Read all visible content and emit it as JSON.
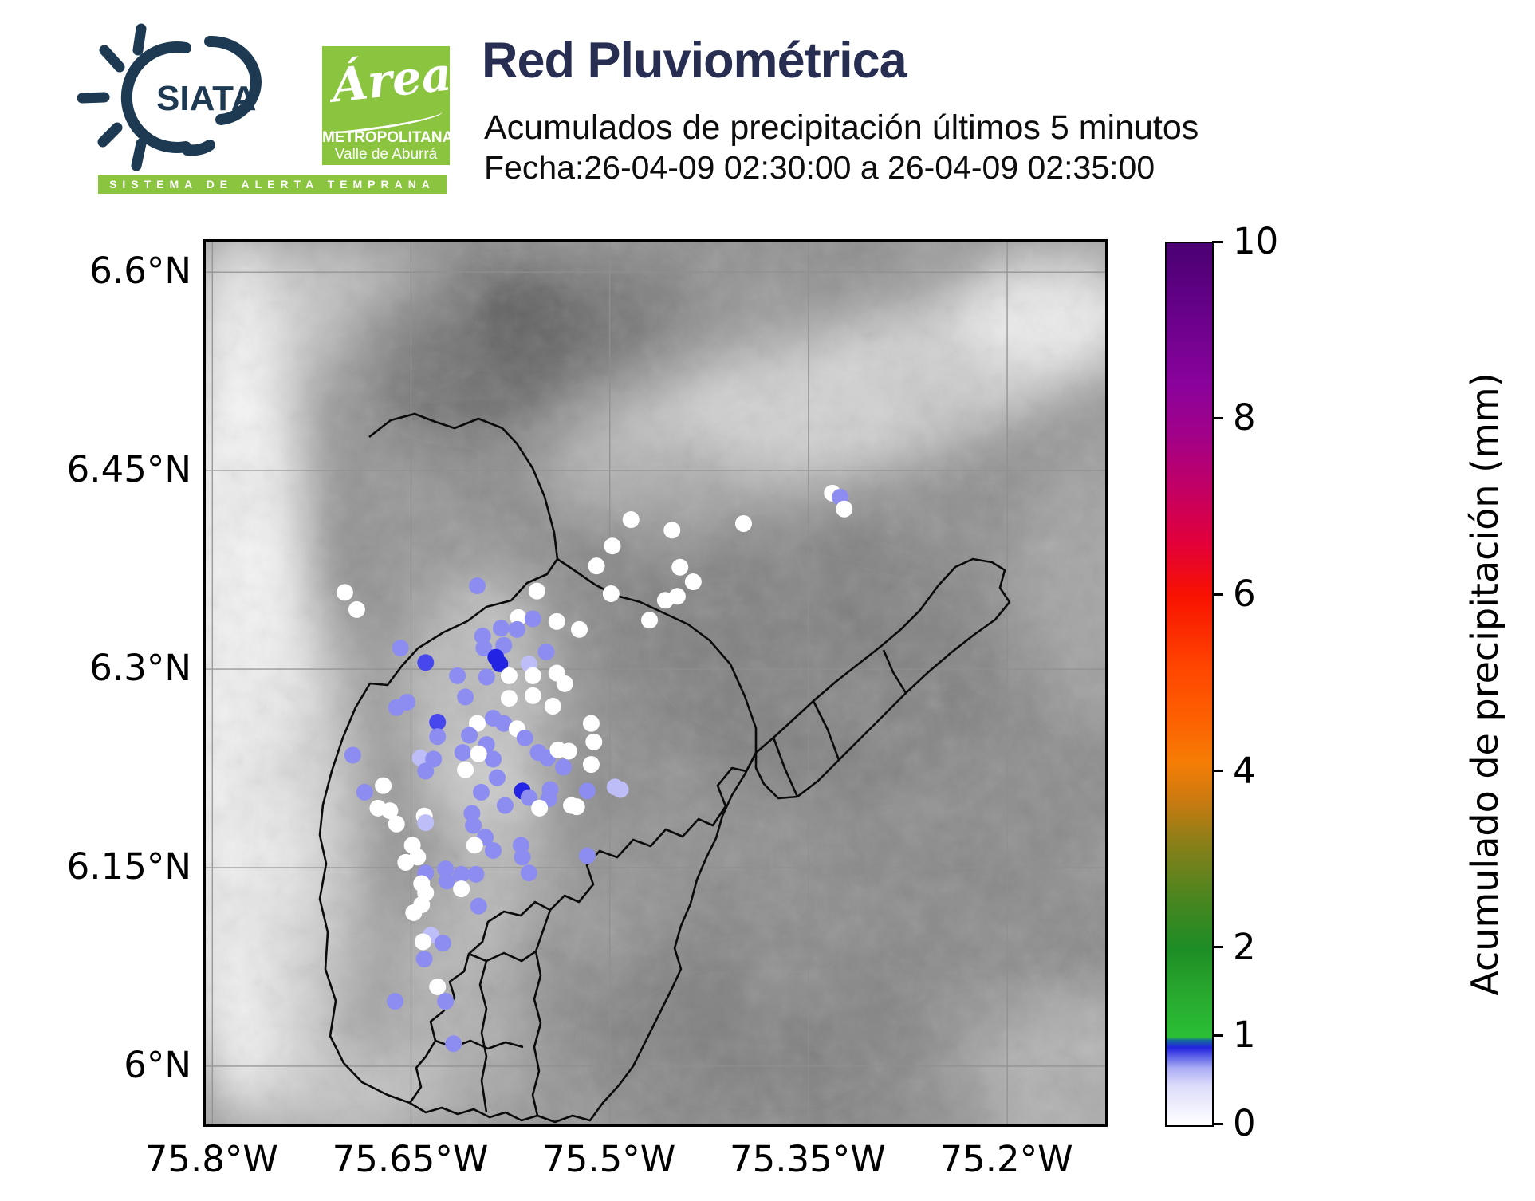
{
  "header": {
    "title": "Red Pluviométrica",
    "subtitle": "Acumulados de precipitación últimos 5 minutos",
    "date_line": "Fecha:26-04-09 02:30:00 a 26-04-09 02:35:00",
    "siata_label": "SIATA",
    "banner_text": "SISTEMA DE ALERTA TEMPRANA",
    "area_logo": {
      "script": "Área",
      "line1": "METROPOLITANA",
      "line2": "Valle de Aburrá"
    },
    "colors": {
      "brand_navy": "#1d3a52",
      "title_navy": "#272e52",
      "brand_green": "#8bc540"
    }
  },
  "chart_data": {
    "type": "scatter",
    "title": "Red Pluviométrica",
    "subtitle": "Acumulados de precipitación últimos 5 minutos",
    "time_range": "26-04-09 02:30:00 a 26-04-09 02:35:00",
    "grid": true,
    "map_extent": {
      "lon_west": 75.805,
      "lon_east": 75.126,
      "lat_south": 5.956,
      "lat_north": 6.623
    },
    "x_ticks": [
      {
        "label": "75.8°W",
        "lon": 75.8
      },
      {
        "label": "75.65°W",
        "lon": 75.65
      },
      {
        "label": "75.5°W",
        "lon": 75.5
      },
      {
        "label": "75.35°W",
        "lon": 75.35
      },
      {
        "label": "75.2°W",
        "lon": 75.2
      }
    ],
    "y_ticks": [
      {
        "label": "6.6°N",
        "lat": 6.6
      },
      {
        "label": "6.45°N",
        "lat": 6.45
      },
      {
        "label": "6.3°N",
        "lat": 6.3
      },
      {
        "label": "6.15°N",
        "lat": 6.15
      },
      {
        "label": "6°N",
        "lat": 6.0
      }
    ],
    "colorbar": {
      "label": "Acumulado de precipitación (mm)",
      "min": 0,
      "max": 10,
      "ticks": [
        0,
        1,
        2,
        4,
        6,
        8,
        10
      ],
      "stops": [
        [
          0.0,
          "#ffffff"
        ],
        [
          0.45,
          "#dcdcfa"
        ],
        [
          0.65,
          "#a9abf4"
        ],
        [
          0.78,
          "#5a5fe8"
        ],
        [
          0.88,
          "#2222e0"
        ],
        [
          0.96,
          "#1565a0"
        ],
        [
          1.0,
          "#2abf35"
        ],
        [
          1.5,
          "#28a82e"
        ],
        [
          2.0,
          "#1d8d26"
        ],
        [
          2.6,
          "#4d851f"
        ],
        [
          3.2,
          "#8a7f18"
        ],
        [
          3.7,
          "#cc7a10"
        ],
        [
          4.1,
          "#f57d05"
        ],
        [
          4.6,
          "#fd6101"
        ],
        [
          5.2,
          "#ff4500"
        ],
        [
          6.0,
          "#f81200"
        ],
        [
          6.6,
          "#e2003a"
        ],
        [
          7.2,
          "#c30063"
        ],
        [
          7.8,
          "#a30188"
        ],
        [
          8.4,
          "#8a029c"
        ],
        [
          9.2,
          "#68018a"
        ],
        [
          10.0,
          "#4a0173"
        ]
      ]
    },
    "value_color_scale": [
      [
        0.15,
        "#ffffff"
      ],
      [
        0.4,
        "#bdbdf7"
      ],
      [
        0.65,
        "#8c8cf1"
      ],
      [
        0.8,
        "#4747ee"
      ],
      [
        99,
        "#2323e4"
      ]
    ],
    "point_format": [
      "lon_W",
      "lat_N",
      "mm_5min"
    ],
    "points": [
      [
        75.51,
        6.378,
        0.05
      ],
      [
        75.498,
        6.393,
        0.05
      ],
      [
        75.555,
        6.359,
        0.05
      ],
      [
        75.6,
        6.363,
        0.5
      ],
      [
        75.7,
        6.358,
        0.05
      ],
      [
        75.691,
        6.345,
        0.05
      ],
      [
        75.447,
        6.377,
        0.05
      ],
      [
        75.437,
        6.366,
        0.05
      ],
      [
        75.458,
        6.352,
        0.05
      ],
      [
        75.449,
        6.355,
        0.05
      ],
      [
        75.47,
        6.337,
        0.05
      ],
      [
        75.499,
        6.357,
        0.05
      ],
      [
        75.569,
        6.339,
        0.05
      ],
      [
        75.558,
        6.338,
        0.5
      ],
      [
        75.54,
        6.336,
        0.05
      ],
      [
        75.523,
        6.33,
        0.05
      ],
      [
        75.582,
        6.331,
        0.5
      ],
      [
        75.57,
        6.33,
        0.5
      ],
      [
        75.596,
        6.325,
        0.5
      ],
      [
        75.595,
        6.316,
        0.5
      ],
      [
        75.58,
        6.318,
        0.5
      ],
      [
        75.586,
        6.309,
        0.9
      ],
      [
        75.583,
        6.304,
        0.9
      ],
      [
        75.658,
        6.316,
        0.5
      ],
      [
        75.639,
        6.305,
        0.75
      ],
      [
        75.548,
        6.313,
        0.5
      ],
      [
        75.561,
        6.304,
        0.3
      ],
      [
        75.558,
        6.295,
        0.05
      ],
      [
        75.576,
        6.295,
        0.05
      ],
      [
        75.615,
        6.295,
        0.5
      ],
      [
        75.593,
        6.294,
        0.5
      ],
      [
        75.54,
        6.297,
        0.05
      ],
      [
        75.534,
        6.289,
        0.05
      ],
      [
        75.609,
        6.279,
        0.5
      ],
      [
        75.576,
        6.278,
        0.05
      ],
      [
        75.558,
        6.28,
        0.05
      ],
      [
        75.543,
        6.272,
        0.05
      ],
      [
        75.661,
        6.271,
        0.5
      ],
      [
        75.653,
        6.275,
        0.5
      ],
      [
        75.63,
        6.26,
        0.75
      ],
      [
        75.6,
        6.259,
        0.05
      ],
      [
        75.588,
        6.263,
        0.5
      ],
      [
        75.58,
        6.259,
        0.5
      ],
      [
        75.57,
        6.255,
        0.05
      ],
      [
        75.564,
        6.248,
        0.5
      ],
      [
        75.606,
        6.25,
        0.5
      ],
      [
        75.593,
        6.243,
        0.5
      ],
      [
        75.588,
        6.232,
        0.5
      ],
      [
        75.63,
        6.249,
        0.5
      ],
      [
        75.694,
        6.235,
        0.5
      ],
      [
        75.643,
        6.233,
        0.3
      ],
      [
        75.633,
        6.232,
        0.5
      ],
      [
        75.611,
        6.237,
        0.5
      ],
      [
        75.599,
        6.236,
        0.05
      ],
      [
        75.554,
        6.237,
        0.5
      ],
      [
        75.547,
        6.233,
        0.5
      ],
      [
        75.539,
        6.239,
        0.05
      ],
      [
        75.531,
        6.238,
        0.05
      ],
      [
        75.514,
        6.259,
        0.05
      ],
      [
        75.512,
        6.245,
        0.05
      ],
      [
        75.535,
        6.226,
        0.5
      ],
      [
        75.514,
        6.228,
        0.05
      ],
      [
        75.639,
        6.223,
        0.5
      ],
      [
        75.609,
        6.224,
        0.05
      ],
      [
        75.585,
        6.218,
        0.5
      ],
      [
        75.685,
        6.207,
        0.5
      ],
      [
        75.671,
        6.212,
        0.05
      ],
      [
        75.597,
        6.207,
        0.5
      ],
      [
        75.566,
        6.208,
        0.9
      ],
      [
        75.561,
        6.203,
        0.5
      ],
      [
        75.545,
        6.209,
        0.5
      ],
      [
        75.546,
        6.202,
        0.5
      ],
      [
        75.675,
        6.195,
        0.05
      ],
      [
        75.666,
        6.193,
        0.05
      ],
      [
        75.661,
        6.183,
        0.05
      ],
      [
        75.649,
        6.167,
        0.05
      ],
      [
        75.64,
        6.189,
        0.05
      ],
      [
        75.639,
        6.184,
        0.3
      ],
      [
        75.579,
        6.197,
        0.5
      ],
      [
        75.553,
        6.195,
        0.05
      ],
      [
        75.529,
        6.197,
        0.05
      ],
      [
        75.525,
        6.196,
        0.05
      ],
      [
        75.517,
        6.208,
        0.5
      ],
      [
        75.496,
        6.211,
        0.3
      ],
      [
        75.492,
        6.209,
        0.3
      ],
      [
        75.604,
        6.191,
        0.5
      ],
      [
        75.603,
        6.182,
        0.5
      ],
      [
        75.594,
        6.173,
        0.5
      ],
      [
        75.602,
        6.167,
        0.05
      ],
      [
        75.588,
        6.163,
        0.5
      ],
      [
        75.567,
        6.167,
        0.5
      ],
      [
        75.517,
        6.159,
        0.5
      ],
      [
        75.645,
        6.158,
        0.05
      ],
      [
        75.566,
        6.158,
        0.5
      ],
      [
        75.484,
        6.413,
        0.05
      ],
      [
        75.453,
        6.405,
        0.05
      ],
      [
        75.399,
        6.41,
        0.05
      ],
      [
        75.332,
        6.433,
        0.05
      ],
      [
        75.326,
        6.43,
        0.5
      ],
      [
        75.323,
        6.421,
        0.05
      ],
      [
        75.654,
        6.154,
        0.05
      ],
      [
        75.639,
        6.146,
        0.5
      ],
      [
        75.624,
        6.149,
        0.5
      ],
      [
        75.623,
        6.14,
        0.5
      ],
      [
        75.612,
        6.145,
        0.5
      ],
      [
        75.601,
        6.145,
        0.5
      ],
      [
        75.642,
        6.138,
        0.05
      ],
      [
        75.639,
        6.131,
        0.05
      ],
      [
        75.612,
        6.134,
        0.05
      ],
      [
        75.599,
        6.121,
        0.5
      ],
      [
        75.642,
        6.122,
        0.05
      ],
      [
        75.648,
        6.116,
        0.05
      ],
      [
        75.561,
        6.146,
        0.5
      ],
      [
        75.635,
        6.099,
        0.3
      ],
      [
        75.641,
        6.094,
        0.05
      ],
      [
        75.626,
        6.093,
        0.5
      ],
      [
        75.64,
        6.081,
        0.5
      ],
      [
        75.63,
        6.06,
        0.05
      ],
      [
        75.662,
        6.049,
        0.5
      ],
      [
        75.624,
        6.049,
        0.5
      ],
      [
        75.618,
        6.017,
        0.5
      ]
    ]
  }
}
